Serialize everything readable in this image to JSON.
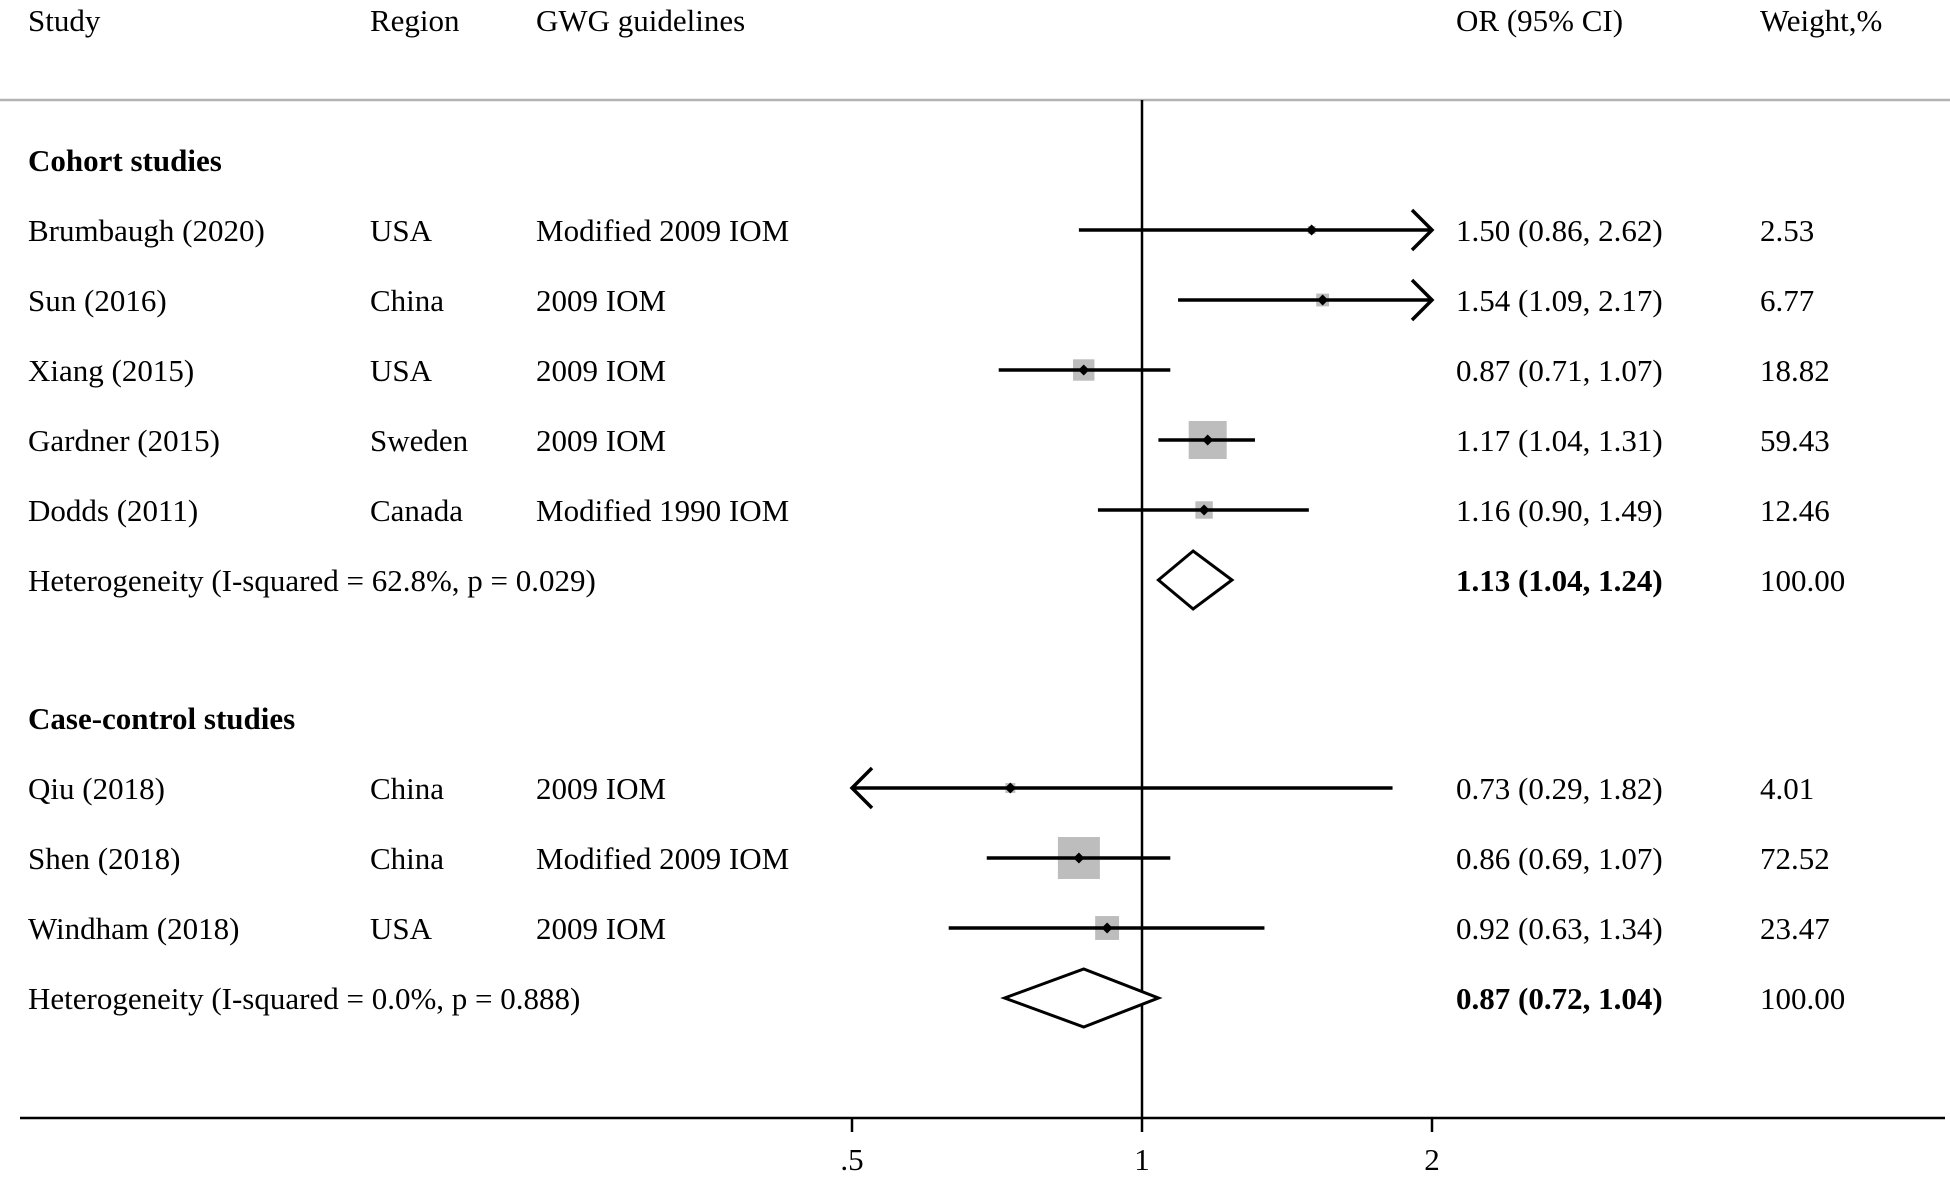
{
  "chart_data": {
    "type": "forest",
    "scale": "log",
    "headers": {
      "study": "Study",
      "region": "Region",
      "guidelines": "GWG guidelines",
      "or_ci": "OR (95% CI)",
      "weight": "Weight,%"
    },
    "subgroups": [
      {
        "label": "Cohort  studies",
        "studies": [
          {
            "name": "Brumbaugh (2020)",
            "region": "USA",
            "guideline": "Modified 2009 IOM",
            "or": 1.5,
            "lo": 0.86,
            "hi": 2.62,
            "or_text": "1.50 (0.86, 2.62)",
            "weight": 2.53,
            "weight_text": "2.53"
          },
          {
            "name": "Sun (2016)",
            "region": "China",
            "guideline": "2009 IOM",
            "or": 1.54,
            "lo": 1.09,
            "hi": 2.17,
            "or_text": "1.54 (1.09, 2.17)",
            "weight": 6.77,
            "weight_text": "6.77"
          },
          {
            "name": "Xiang (2015)",
            "region": "USA",
            "guideline": "2009 IOM",
            "or": 0.87,
            "lo": 0.71,
            "hi": 1.07,
            "or_text": "0.87 (0.71, 1.07)",
            "weight": 18.82,
            "weight_text": "18.82"
          },
          {
            "name": "Gardner (2015)",
            "region": "Sweden",
            "guideline": "2009 IOM",
            "or": 1.17,
            "lo": 1.04,
            "hi": 1.31,
            "or_text": "1.17 (1.04, 1.31)",
            "weight": 59.43,
            "weight_text": "59.43"
          },
          {
            "name": "Dodds (2011)",
            "region": "Canada",
            "guideline": "Modified 1990 IOM",
            "or": 1.16,
            "lo": 0.9,
            "hi": 1.49,
            "or_text": "1.16 (0.90, 1.49)",
            "weight": 12.46,
            "weight_text": "12.46"
          }
        ],
        "pooled": {
          "label": "Heterogeneity (I-squared = 62.8%, p = 0.029)",
          "or": 1.13,
          "lo": 1.04,
          "hi": 1.24,
          "or_text": "1.13 (1.04, 1.24)",
          "weight_text": "100.00"
        }
      },
      {
        "label": "Case-control  studies",
        "studies": [
          {
            "name": "Qiu (2018)",
            "region": "China",
            "guideline": "2009 IOM",
            "or": 0.73,
            "lo": 0.29,
            "hi": 1.82,
            "or_text": "0.73 (0.29, 1.82)",
            "weight": 4.01,
            "weight_text": "4.01"
          },
          {
            "name": "Shen (2018)",
            "region": "China",
            "guideline": "Modified 2009 IOM",
            "or": 0.86,
            "lo": 0.69,
            "hi": 1.07,
            "or_text": "0.86 (0.69, 1.07)",
            "weight": 72.52,
            "weight_text": "72.52"
          },
          {
            "name": "Windham (2018)",
            "region": "USA",
            "guideline": "2009 IOM",
            "or": 0.92,
            "lo": 0.63,
            "hi": 1.34,
            "or_text": "0.92 (0.63, 1.34)",
            "weight": 23.47,
            "weight_text": "23.47"
          }
        ],
        "pooled": {
          "label": "Heterogeneity (I-squared = 0.0%, p = 0.888)",
          "or": 0.87,
          "lo": 0.72,
          "hi": 1.04,
          "or_text": "0.87 (0.72, 1.04)",
          "weight_text": "100.00"
        }
      }
    ],
    "x_ticks": [
      {
        "value": 0.5,
        "label": ".5"
      },
      {
        "value": 1,
        "label": "1"
      },
      {
        "value": 2,
        "label": "2"
      }
    ],
    "xlim": [
      0.5,
      2
    ],
    "reference_line": 1,
    "colors": {
      "box": "#bdbdbd",
      "line": "#000000",
      "text": "#000000"
    }
  }
}
